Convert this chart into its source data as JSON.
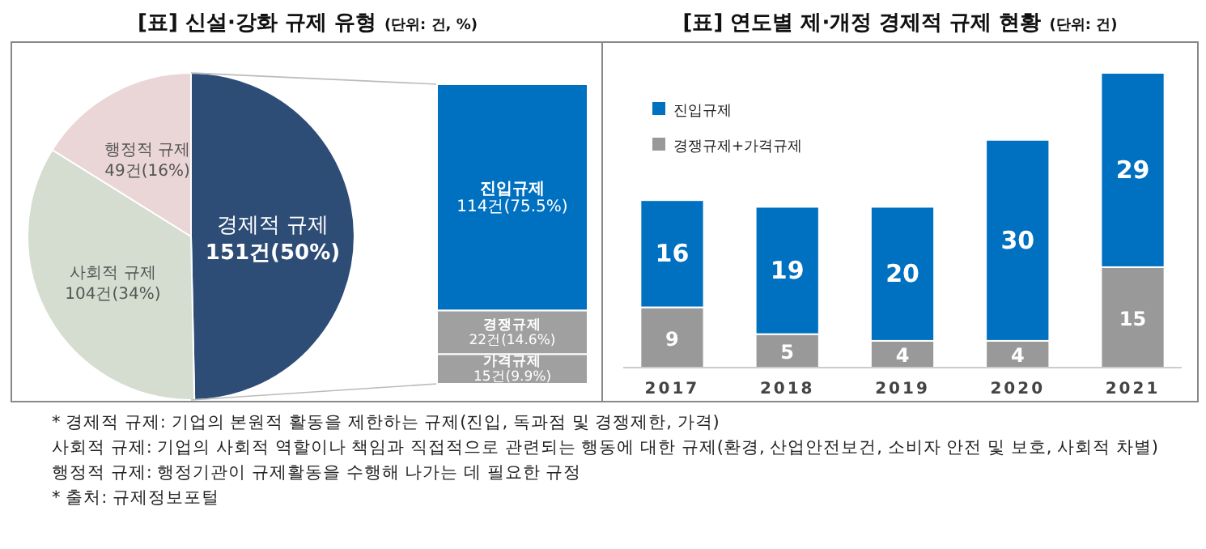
{
  "chart_data": [
    {
      "type": "pie",
      "title": "[표] 신설·강화 규제 유형",
      "subtitle": "(단위: 건, %)",
      "categories": [
        "경제적 규제",
        "사회적 규제",
        "행정적 규제"
      ],
      "values": [
        151,
        104,
        49
      ],
      "value_labels": [
        "151건(50%)",
        "104건(34%)",
        "49건(16%)"
      ],
      "colors": [
        "#2e4d76",
        "#d5ddd0",
        "#ead5d7"
      ],
      "annotations": [
        "* 경제적 규제: 기업의 본원적 활동을 제한하는 규제(진입, 독과점 및 경쟁제한, 가격)",
        "사회적 규제: 기업의 사회적 역할이나 책임과 직접적으로 관련되는 행동에 대한 규제(환경, 산업안전보건, 소비자 안전 및 보호, 사회적 차별)",
        "행정적 규제: 행정기관이 규제활동을 수행해 나가는 데 필요한 규정",
        "* 출처: 규제정보포털"
      ]
    },
    {
      "type": "bar",
      "stacked": true,
      "categories": [
        null
      ],
      "tick_labels": false,
      "series": [
        {
          "name": "가격규제",
          "color": "#a0a0a0",
          "values": [
            15
          ],
          "value_labels": [
            "15건(9.9%)"
          ]
        },
        {
          "name": "경쟁규제",
          "color": "#a0a0a0",
          "values": [
            22
          ],
          "value_labels": [
            "22건(14.6%)"
          ]
        },
        {
          "name": "진입규제",
          "color": "#0070c0",
          "values": [
            114
          ],
          "value_labels": [
            "114건(75.5%)"
          ]
        }
      ]
    },
    {
      "type": "bar",
      "stacked": true,
      "title": "[표] 연도별 제·개정 경제적 규제 현황",
      "subtitle": "(단위: 건)",
      "categories": [
        "2017",
        "2018",
        "2019",
        "2020",
        "2021"
      ],
      "data_labels": true,
      "legend": "top left",
      "tick_labels": "x",
      "series": [
        {
          "name": "경쟁규제+가격규제",
          "color": "#999999",
          "values": [
            9,
            5,
            4,
            4,
            15
          ]
        },
        {
          "name": "진입규제",
          "color": "#0070c0",
          "values": [
            16,
            19,
            20,
            30,
            29
          ]
        }
      ]
    }
  ]
}
